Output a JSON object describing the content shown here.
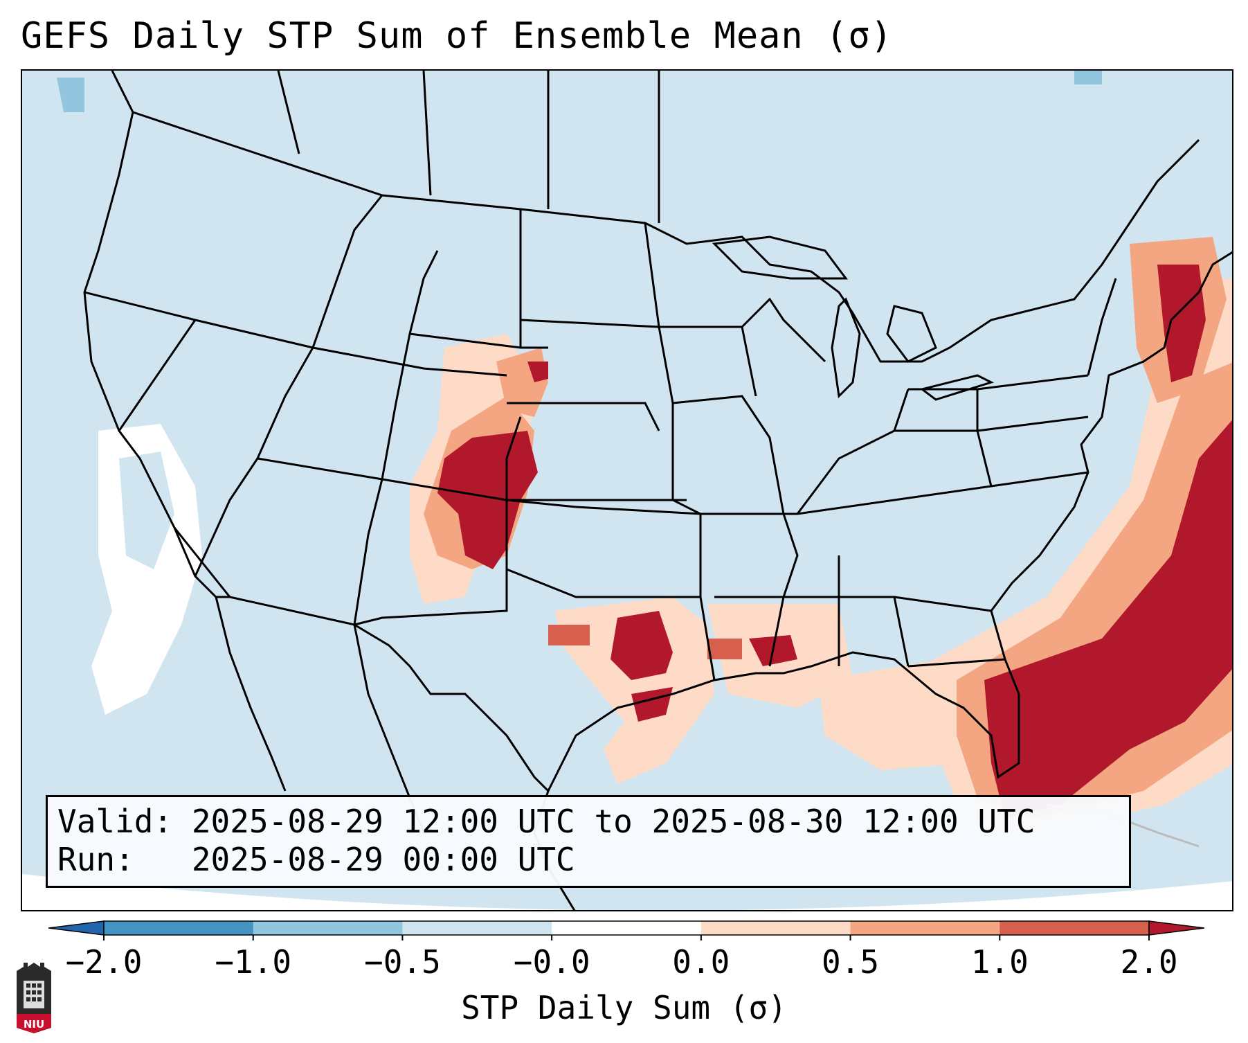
{
  "title": "GEFS Daily STP Sum of Ensemble Mean (σ)",
  "info": {
    "valid_line": "Valid: 2025-08-29 12:00 UTC to 2025-08-30 12:00 UTC",
    "run_line": "Run:   2025-08-29 00:00 UTC"
  },
  "colorbar": {
    "label": "STP Daily Sum (σ)",
    "ticks": [
      "−2.0",
      "−1.0",
      "−0.5",
      "−0.0",
      "0.0",
      "0.5",
      "1.0",
      "2.0"
    ],
    "bins": [
      {
        "range": "< -2.0",
        "color": "#2166ac"
      },
      {
        "range": "-2.0 to -1.0",
        "color": "#4393c3"
      },
      {
        "range": "-1.0 to -0.5",
        "color": "#92c5de"
      },
      {
        "range": "-0.5 to -0.0",
        "color": "#d1e5f0"
      },
      {
        "range": "-0.0 to 0.0",
        "color": "#ffffff"
      },
      {
        "range": "0.0 to 0.5",
        "color": "#fddbc7"
      },
      {
        "range": "0.5 to 1.0",
        "color": "#f4a582"
      },
      {
        "range": "1.0 to 2.0",
        "color": "#d6604d"
      },
      {
        "range": "> 2.0",
        "color": "#b2182b"
      }
    ]
  },
  "map": {
    "projection": "Lambert Conformal (CONUS)",
    "background_color": "#d1e5f0",
    "regions": [
      {
        "name": "Central High Plains (CO/NE/KS/NM)",
        "level": "> 2.0"
      },
      {
        "name": "West/South Texas",
        "level": "1.0 to 2.0"
      },
      {
        "name": "Louisiana Gulf Coast",
        "level": "1.0 to 2.0"
      },
      {
        "name": "Florida and western Atlantic",
        "level": "> 2.0"
      },
      {
        "name": "New England coast",
        "level": "> 2.0"
      },
      {
        "name": "Nevada / California",
        "level": "-0.0 to 0.0"
      }
    ]
  },
  "logo": {
    "text": "NIU"
  }
}
